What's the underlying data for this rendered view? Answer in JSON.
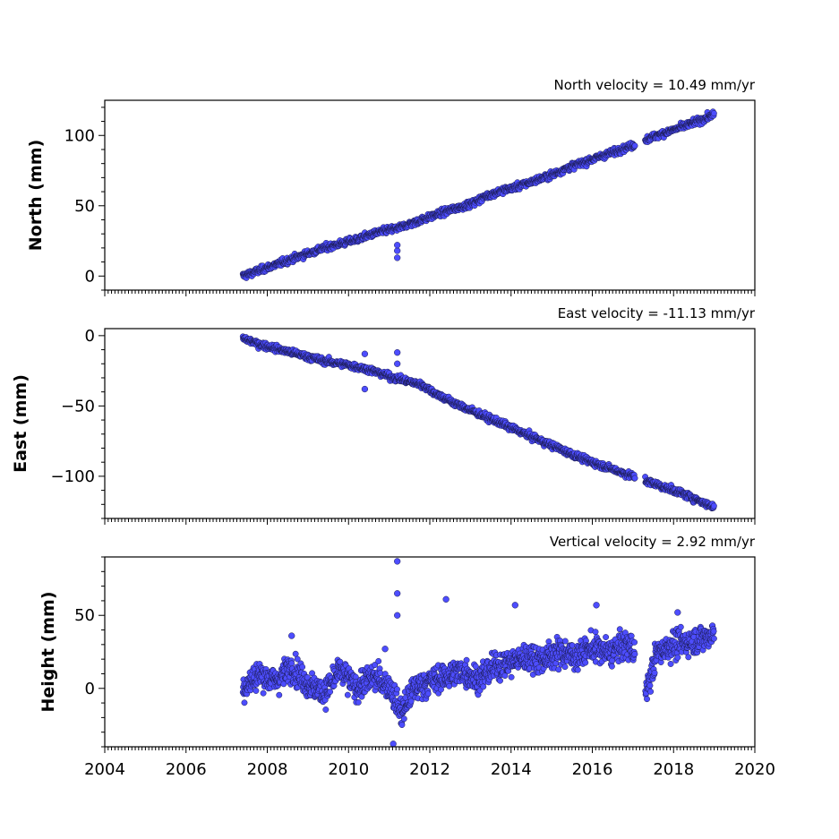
{
  "chart_data": [
    {
      "type": "scatter",
      "title": "North velocity = 10.49 mm/yr",
      "xlabel": "",
      "ylabel": "North (mm)",
      "xlim": [
        2004,
        2020
      ],
      "ylim": [
        -10,
        125
      ],
      "yticks": [
        0,
        50,
        100
      ],
      "tick_labels": [
        "0",
        "50",
        "100"
      ],
      "grid": false,
      "marker_color": "#4d4dff",
      "marker_edge": "#1a1a4d",
      "series": [
        {
          "x": [
            2007.4,
            2007.8,
            2008.2,
            2008.6,
            2009.0,
            2009.4,
            2009.8,
            2010.2,
            2010.6,
            2011.0,
            2011.2,
            2011.4,
            2011.8,
            2012.2,
            2012.6,
            2013.0,
            2013.4,
            2013.8,
            2014.2,
            2014.6,
            2015.0,
            2015.4,
            2015.8,
            2016.2,
            2016.6,
            2017.0,
            2017.4,
            2017.8,
            2018.2,
            2018.6,
            2019.0
          ],
          "y": [
            0,
            4,
            8,
            12,
            16,
            20,
            23,
            26,
            30,
            33,
            34,
            36,
            40,
            44,
            48,
            51,
            57,
            61,
            64,
            68,
            72,
            77,
            81,
            85,
            89,
            93,
            98,
            102,
            106,
            110,
            115
          ],
          "outliers": [
            [
              2011.2,
              13
            ],
            [
              2011.2,
              18
            ],
            [
              2011.2,
              22
            ]
          ]
        }
      ]
    },
    {
      "type": "scatter",
      "title": "East velocity = -11.13 mm/yr",
      "xlabel": "",
      "ylabel": "East (mm)",
      "xlim": [
        2004,
        2020
      ],
      "ylim": [
        -130,
        5
      ],
      "yticks": [
        0,
        -50,
        -100
      ],
      "tick_labels": [
        "0",
        "−50",
        "−100"
      ],
      "grid": false,
      "marker_color": "#4d4dff",
      "marker_edge": "#1a1a4d",
      "series": [
        {
          "x": [
            2007.4,
            2007.8,
            2008.2,
            2008.6,
            2009.0,
            2009.4,
            2009.8,
            2010.2,
            2010.6,
            2011.0,
            2011.4,
            2011.8,
            2012.2,
            2012.6,
            2013.0,
            2013.4,
            2013.8,
            2014.2,
            2014.6,
            2015.0,
            2015.4,
            2015.8,
            2016.2,
            2016.6,
            2017.0,
            2017.4,
            2017.8,
            2018.2,
            2018.6,
            2019.0
          ],
          "y": [
            -2,
            -6,
            -9,
            -12,
            -15,
            -18,
            -20,
            -22,
            -25,
            -29,
            -32,
            -35,
            -42,
            -48,
            -53,
            -58,
            -63,
            -68,
            -73,
            -78,
            -83,
            -88,
            -92,
            -96,
            -100,
            -104,
            -108,
            -112,
            -117,
            -122
          ],
          "outliers": [
            [
              2011.2,
              -12
            ],
            [
              2011.2,
              -20
            ],
            [
              2010.4,
              -13
            ],
            [
              2010.4,
              -38
            ]
          ]
        }
      ]
    },
    {
      "type": "scatter",
      "title": "Vertical velocity = 2.92 mm/yr",
      "xlabel": "",
      "ylabel": "Height (mm)",
      "xlim": [
        2004,
        2020
      ],
      "ylim": [
        -40,
        90
      ],
      "yticks": [
        0,
        50
      ],
      "tick_labels": [
        "0",
        "50"
      ],
      "xticks": [
        2004,
        2006,
        2008,
        2010,
        2012,
        2014,
        2016,
        2018,
        2020
      ],
      "xtick_labels": [
        "2004",
        "2006",
        "2008",
        "2010",
        "2012",
        "2014",
        "2016",
        "2018",
        "2020"
      ],
      "grid": false,
      "marker_color": "#4d4dff",
      "marker_edge": "#1a1a4d",
      "series": [
        {
          "x": [
            2007.4,
            2007.8,
            2008.2,
            2008.6,
            2009.0,
            2009.4,
            2009.8,
            2010.2,
            2010.6,
            2011.0,
            2011.3,
            2011.6,
            2012.0,
            2012.4,
            2012.8,
            2013.2,
            2013.6,
            2014.0,
            2014.4,
            2014.8,
            2015.2,
            2015.6,
            2016.0,
            2016.4,
            2016.8,
            2017.0,
            2017.3,
            2017.6,
            2018.0,
            2018.4,
            2018.8,
            2019.0
          ],
          "y": [
            0,
            10,
            5,
            15,
            3,
            -3,
            12,
            0,
            8,
            2,
            -18,
            0,
            5,
            8,
            12,
            6,
            15,
            18,
            22,
            20,
            25,
            22,
            28,
            24,
            30,
            28,
            -5,
            25,
            30,
            32,
            35,
            38
          ],
          "outliers": [
            [
              2011.2,
              87
            ],
            [
              2011.2,
              65
            ],
            [
              2011.2,
              50
            ],
            [
              2012.4,
              61
            ],
            [
              2014.1,
              57
            ],
            [
              2016.1,
              57
            ],
            [
              2018.1,
              52
            ],
            [
              2011.1,
              -38
            ],
            [
              2010.9,
              27
            ],
            [
              2008.6,
              36
            ]
          ]
        }
      ]
    }
  ]
}
